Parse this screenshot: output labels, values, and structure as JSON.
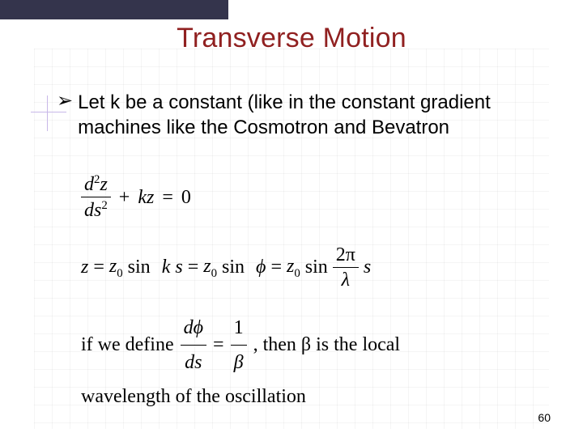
{
  "slide": {
    "title": "Transverse Motion",
    "bullet": "Let k be a constant (like in the constant gradient machines like the Cosmotron and Bevatron",
    "page_number": "60",
    "colors": {
      "title_color": "#902020",
      "topbar_color": "#34344c",
      "accent_color": "#c8b8e8",
      "background": "#ffffff",
      "text_color": "#000000",
      "grid_color": "rgba(0,0,0,0.04)"
    },
    "fonts": {
      "title_pt": 34,
      "body_pt": 24,
      "math_pt": 24,
      "math_family": "Times New Roman",
      "body_family": "Verdana"
    },
    "math": {
      "eq1": {
        "frac_num": "d",
        "frac_num_sup": "2",
        "frac_num_var": "z",
        "frac_den": "ds",
        "frac_den_sup": "2",
        "plus": "+",
        "term": "kz",
        "eq": "=",
        "rhs": "0"
      },
      "eq2": {
        "lhs": "z",
        "eq": "=",
        "z0": "z",
        "z0_sub": "0",
        "sin": "sin",
        "ks_k": "k",
        "ks_s": "s",
        "phi": "ϕ",
        "frac_num": "2π",
        "frac_den": "λ",
        "s": "s"
      },
      "eq3": {
        "intro": "if we define",
        "frac_num": "dϕ",
        "frac_den": "ds",
        "eq": "=",
        "rhs_num": "1",
        "rhs_den": "β",
        "tail": ", then β is the local"
      },
      "eq4": {
        "text": "wavelength of the oscillation"
      }
    }
  }
}
